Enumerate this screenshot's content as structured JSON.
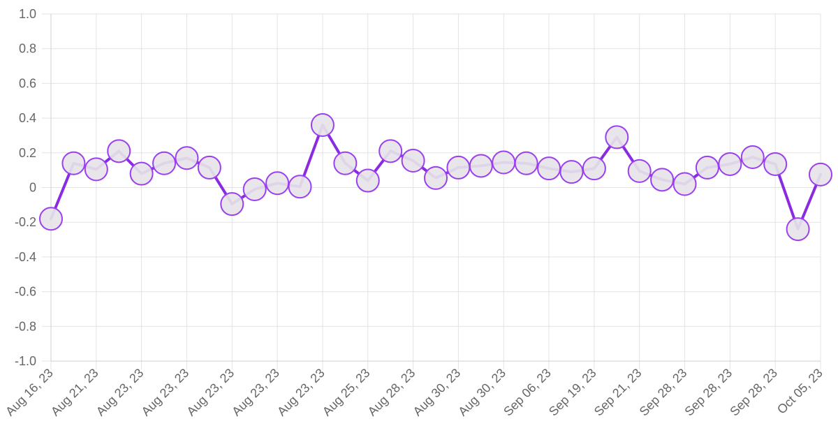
{
  "chart_data": {
    "type": "line",
    "x_tick_labels": [
      "Aug 16, 23",
      "Aug 21, 23",
      "Aug 23, 23",
      "Aug 23, 23",
      "Aug 23, 23",
      "Aug 23, 23",
      "Aug 23, 23",
      "Aug 25, 23",
      "Aug 28, 23",
      "Aug 30, 23",
      "Aug 30, 23",
      "Sep 06, 23",
      "Sep 19, 23",
      "Sep 21, 23",
      "Sep 28, 23",
      "Sep 28, 23",
      "Sep 28, 23",
      "Oct 05, 23"
    ],
    "y_tick_labels": [
      "1.0",
      "0.8",
      "0.6",
      "0.4",
      "0.2",
      "0",
      "-0.2",
      "-0.4",
      "-0.6",
      "-0.8",
      "-1.0"
    ],
    "ylim": [
      -1.0,
      1.0
    ],
    "grid": true,
    "series": [
      {
        "values": [
          -0.18,
          0.14,
          0.105,
          0.21,
          0.08,
          0.14,
          0.17,
          0.115,
          -0.095,
          -0.01,
          0.025,
          0.005,
          0.36,
          0.14,
          0.04,
          0.21,
          0.155,
          0.055,
          0.115,
          0.125,
          0.145,
          0.14,
          0.11,
          0.09,
          0.11,
          0.29,
          0.095,
          0.045,
          0.02,
          0.115,
          0.135,
          0.175,
          0.135,
          -0.24,
          0.075
        ],
        "line_color": "#8a2be2",
        "marker_fill": "#e6e4e8",
        "marker_stroke": "#9b3ff0"
      }
    ]
  }
}
